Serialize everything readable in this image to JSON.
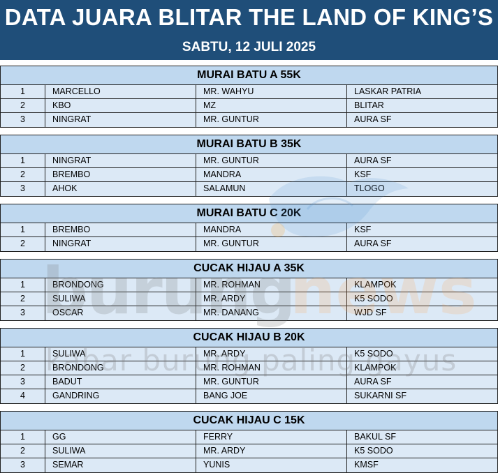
{
  "header": {
    "title": "DATA JUARA BLITAR THE LAND OF KING’S",
    "date": "SABTU, 12 JULI 2025"
  },
  "watermark": {
    "brand_left": "burung",
    "brand_right": "news",
    "tagline": "kabar burung paling gayus"
  },
  "colors": {
    "header_bg": "#1f4e79",
    "section_title_bg": "#bfd8ef",
    "row_bg": "#dce9f6"
  },
  "sections": [
    {
      "title": "MURAI BATU A 55K",
      "rows": [
        [
          "1",
          "MARCELLO",
          "MR. WAHYU",
          "LASKAR PATRIA"
        ],
        [
          "2",
          "KBO",
          "MZ",
          "BLITAR"
        ],
        [
          "3",
          "NINGRAT",
          "MR. GUNTUR",
          "AURA SF"
        ]
      ]
    },
    {
      "title": "MURAI BATU B 35K",
      "rows": [
        [
          "1",
          "NINGRAT",
          "MR. GUNTUR",
          "AURA SF"
        ],
        [
          "2",
          "BREMBO",
          "MANDRA",
          "KSF"
        ],
        [
          "3",
          "AHOK",
          "SALAMUN",
          "TLOGO"
        ]
      ]
    },
    {
      "title": "MURAI BATU C 20K",
      "rows": [
        [
          "1",
          "BREMBO",
          "MANDRA",
          "KSF"
        ],
        [
          "2",
          "NINGRAT",
          "MR. GUNTUR",
          "AURA SF"
        ]
      ]
    },
    {
      "title": "CUCAK HIJAU A 35K",
      "rows": [
        [
          "1",
          "BRONDONG",
          "MR. ROHMAN",
          "KLAMPOK"
        ],
        [
          "2",
          "SULIWA",
          "MR. ARDY",
          "K5 SODO"
        ],
        [
          "3",
          "OSCAR",
          "MR. DANANG",
          "WJD SF"
        ]
      ]
    },
    {
      "title": "CUCAK HIJAU B 20K",
      "rows": [
        [
          "1",
          "SULIWA",
          "MR. ARDY",
          "K5 SODO"
        ],
        [
          "2",
          "BRONDONG",
          "MR. ROHMAN",
          "KLAMPOK"
        ],
        [
          "3",
          "BADUT",
          "MR. GUNTUR",
          "AURA SF"
        ],
        [
          "4",
          "GANDRING",
          "BANG JOE",
          "SUKARNI SF"
        ]
      ]
    },
    {
      "title": "CUCAK HIJAU C 15K",
      "rows": [
        [
          "1",
          "GG",
          "FERRY",
          "BAKUL SF"
        ],
        [
          "2",
          "SULIWA",
          "MR. ARDY",
          "K5 SODO"
        ],
        [
          "3",
          "SEMAR",
          "YUNIS",
          "KMSF"
        ]
      ]
    }
  ]
}
